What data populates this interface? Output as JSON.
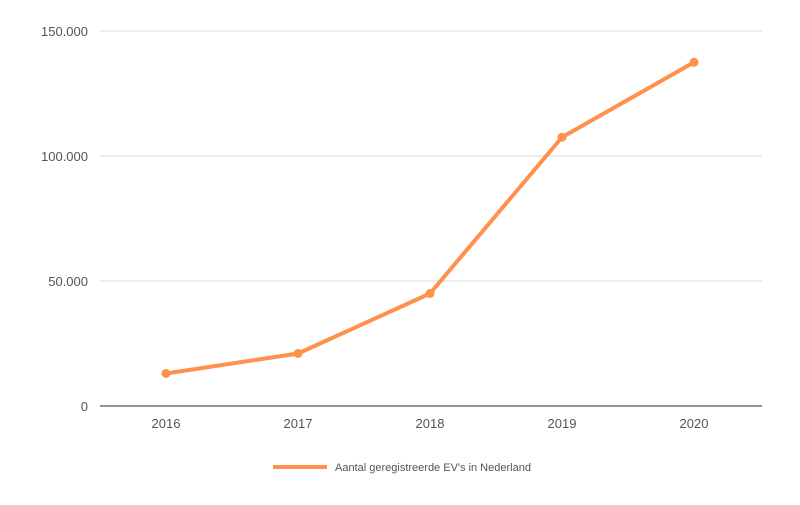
{
  "chart_data": {
    "type": "line",
    "categories": [
      "2016",
      "2017",
      "2018",
      "2019",
      "2020"
    ],
    "series": [
      {
        "name": "Aantal geregistreerde EV's in Nederland",
        "values": [
          13000,
          21000,
          45000,
          107500,
          137500
        ],
        "color": "#ff914d"
      }
    ],
    "y_ticks": [
      "0",
      "50.000",
      "100.000",
      "150.000"
    ],
    "y_tick_values": [
      0,
      50000,
      100000,
      150000
    ],
    "ylim": [
      0,
      150000
    ],
    "grid": true,
    "legend_position": "bottom"
  }
}
